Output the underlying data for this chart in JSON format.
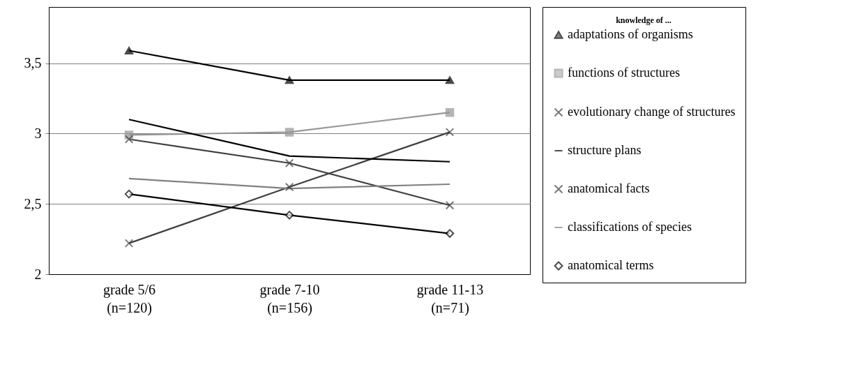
{
  "chart_data": {
    "type": "line",
    "legend_title": "knowledge of  ...",
    "categories": [
      "grade 5/6\n(n=120)",
      "grade 7-10\n(n=156)",
      "grade 11-13\n(n=71)"
    ],
    "ylim": [
      2,
      3.9
    ],
    "yticks": [
      2,
      {
        "value": 2.5,
        "label": "2,5"
      },
      3,
      {
        "value": 3.5,
        "label": "3,5"
      }
    ],
    "grid": "y",
    "legend": "right",
    "series": [
      {
        "name": "adaptations of organisms",
        "color": "#000000",
        "marker": "triangle",
        "values": [
          3.59,
          3.38,
          3.38
        ]
      },
      {
        "name": "functions of structures",
        "color": "#969696",
        "marker": "square",
        "values": [
          2.99,
          3.01,
          3.15
        ]
      },
      {
        "name": "evolutionary change of structures",
        "color": "#404040",
        "marker": "cross",
        "values": [
          2.22,
          2.62,
          3.01
        ]
      },
      {
        "name": "structure plans",
        "color": "#000000",
        "marker": "none",
        "values": [
          3.1,
          2.84,
          2.8
        ]
      },
      {
        "name": "anatomical facts",
        "color": "#404040",
        "marker": "cross",
        "values": [
          2.96,
          2.79,
          2.49
        ]
      },
      {
        "name": "classifications of species",
        "color": "#808080",
        "marker": "none",
        "values": [
          2.68,
          2.61,
          2.64
        ]
      },
      {
        "name": "anatomical terms",
        "color": "#000000",
        "marker": "diamond",
        "values": [
          2.57,
          2.42,
          2.29
        ]
      }
    ]
  }
}
